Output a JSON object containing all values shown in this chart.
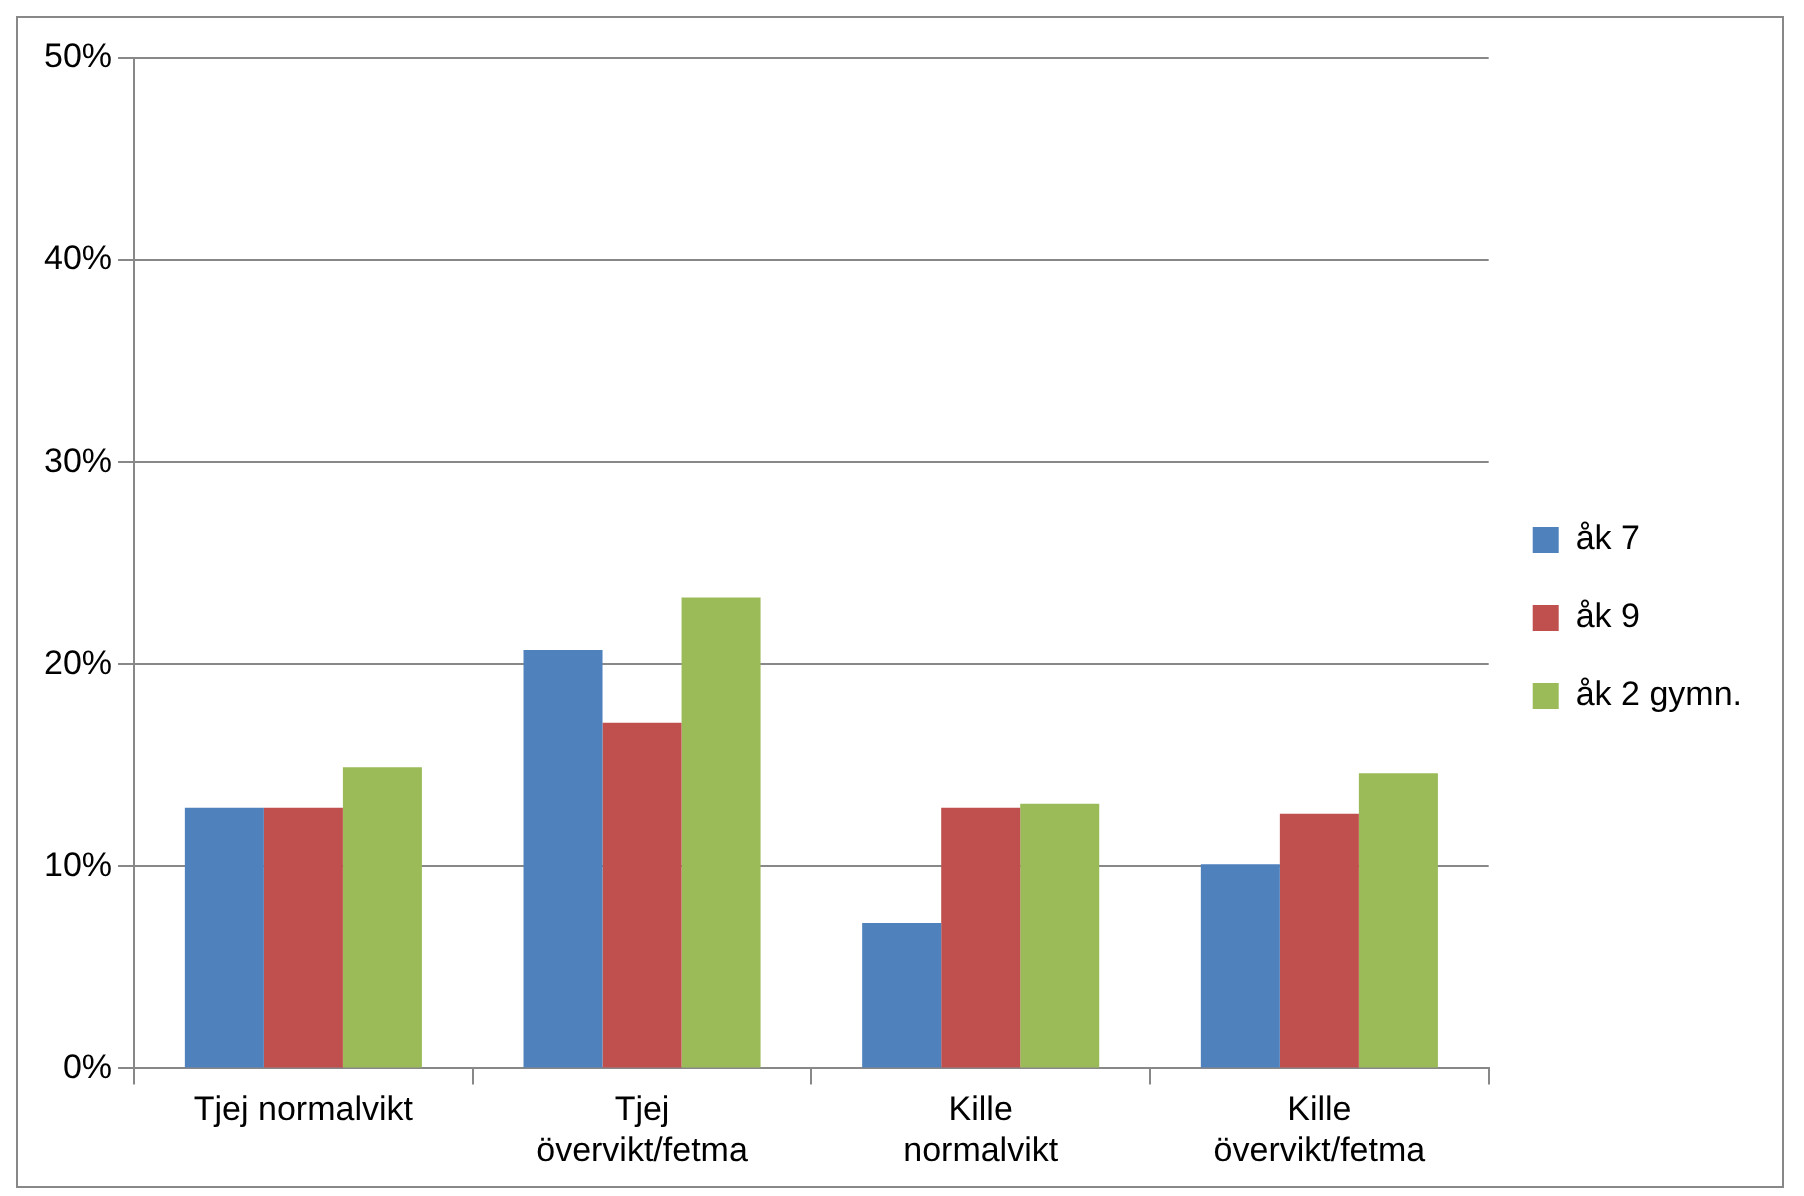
{
  "chart_data": {
    "type": "bar",
    "categories": [
      "Tjej normalvikt",
      "Tjej\növervikt/fetma",
      "Kille\nnormalvikt",
      "Kille\növervikt/fetma"
    ],
    "series": [
      {
        "name": "åk 7",
        "color": "#4f81bd",
        "values": [
          12.9,
          20.7,
          7.2,
          10.1
        ]
      },
      {
        "name": "åk 9",
        "color": "#c0504d",
        "values": [
          12.9,
          17.1,
          12.9,
          12.6
        ]
      },
      {
        "name": "åk 2 gymn.",
        "color": "#9bbb59",
        "values": [
          14.9,
          23.3,
          13.1,
          14.6
        ]
      }
    ],
    "ylim": [
      0,
      50
    ],
    "yticks": [
      {
        "value": 0,
        "label": "0%"
      },
      {
        "value": 10,
        "label": "10%"
      },
      {
        "value": 20,
        "label": "20%"
      },
      {
        "value": 30,
        "label": "30%"
      },
      {
        "value": 40,
        "label": "40%"
      },
      {
        "value": 50,
        "label": "50%"
      }
    ],
    "grid": "y",
    "legend": "right"
  }
}
